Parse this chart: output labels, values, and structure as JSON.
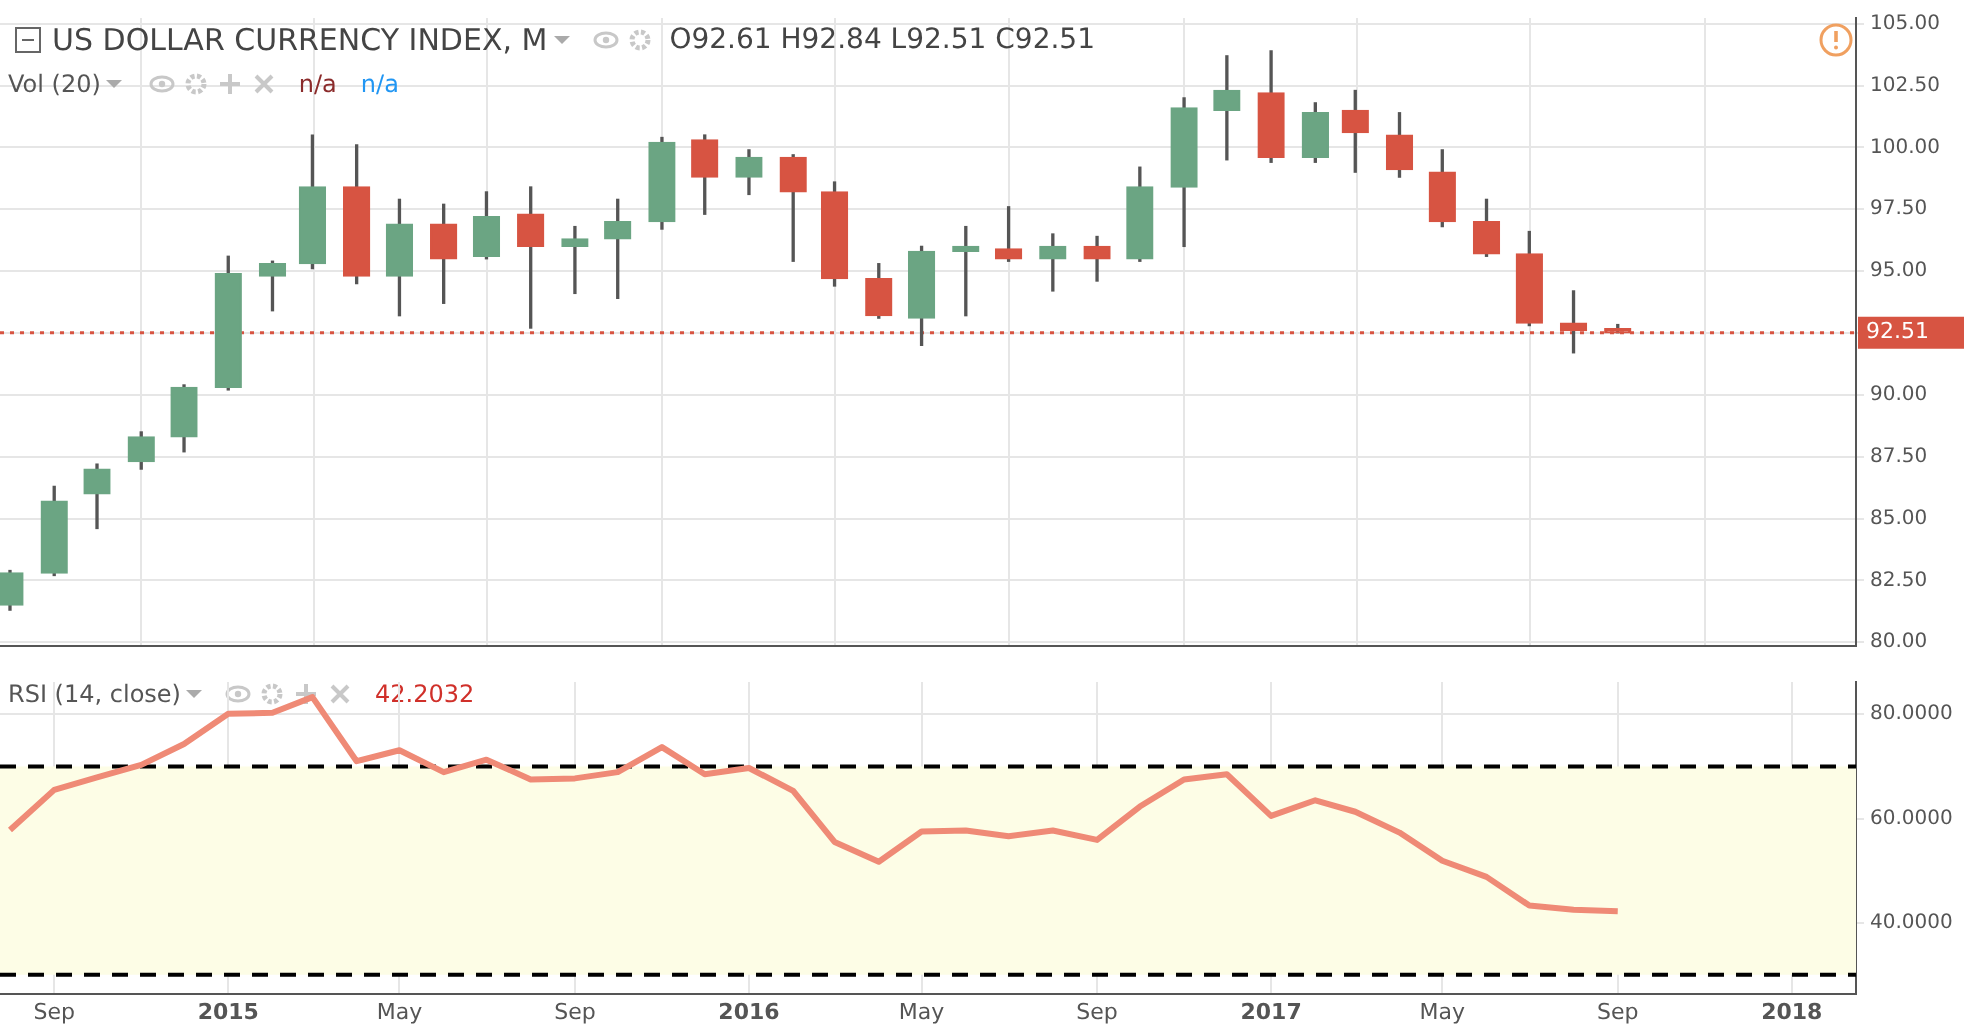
{
  "chart_data": [
    {
      "type": "candlestick",
      "title": "US DOLLAR CURRENCY INDEX, M",
      "annotations": [
        "O92.61 H92.84 L92.51 C92.51",
        "Vol (20)",
        "n/a",
        "n/a"
      ],
      "x": [
        "2014-08",
        "2014-09",
        "2014-10",
        "2014-11",
        "2014-12",
        "2015-01",
        "2015-02",
        "2015-03",
        "2015-04",
        "2015-05",
        "2015-06",
        "2015-07",
        "2015-08",
        "2015-09",
        "2015-10",
        "2015-11",
        "2015-12",
        "2016-01",
        "2016-02",
        "2016-03",
        "2016-04",
        "2016-05",
        "2016-06",
        "2016-07",
        "2016-08",
        "2016-09",
        "2016-10",
        "2016-11",
        "2016-12",
        "2017-01",
        "2017-02",
        "2017-03",
        "2017-04",
        "2017-05",
        "2017-06",
        "2017-07",
        "2017-08",
        "2017-09"
      ],
      "ohlc": [
        [
          81.5,
          82.9,
          81.3,
          82.8
        ],
        [
          82.8,
          86.3,
          82.7,
          85.7
        ],
        [
          86.0,
          87.2,
          84.6,
          87.0
        ],
        [
          87.3,
          88.5,
          87.0,
          88.3
        ],
        [
          88.3,
          90.4,
          87.7,
          90.3
        ],
        [
          90.3,
          95.6,
          90.2,
          94.9
        ],
        [
          94.8,
          95.4,
          93.4,
          95.3
        ],
        [
          95.3,
          100.5,
          95.1,
          98.4
        ],
        [
          98.4,
          100.1,
          94.5,
          94.8
        ],
        [
          94.8,
          97.9,
          93.2,
          96.9
        ],
        [
          96.9,
          97.7,
          93.7,
          95.5
        ],
        [
          95.6,
          98.2,
          95.5,
          97.2
        ],
        [
          97.3,
          98.4,
          92.7,
          96.0
        ],
        [
          96.0,
          96.8,
          94.1,
          96.3
        ],
        [
          96.3,
          97.9,
          93.9,
          97.0
        ],
        [
          97.0,
          100.4,
          96.7,
          100.2
        ],
        [
          100.3,
          100.5,
          97.3,
          98.8
        ],
        [
          98.8,
          99.9,
          98.1,
          99.6
        ],
        [
          99.6,
          99.7,
          95.4,
          98.2
        ],
        [
          98.2,
          98.6,
          94.4,
          94.7
        ],
        [
          94.7,
          95.3,
          93.1,
          93.2
        ],
        [
          93.1,
          96.0,
          92.0,
          95.8
        ],
        [
          95.8,
          96.8,
          93.2,
          96.0
        ],
        [
          95.9,
          97.6,
          95.4,
          95.5
        ],
        [
          95.5,
          96.5,
          94.2,
          96.0
        ],
        [
          96.0,
          96.4,
          94.6,
          95.5
        ],
        [
          95.5,
          99.2,
          95.4,
          98.4
        ],
        [
          98.4,
          102.0,
          96.0,
          101.6
        ],
        [
          101.5,
          103.7,
          99.5,
          102.3
        ],
        [
          102.2,
          103.9,
          99.4,
          99.6
        ],
        [
          99.6,
          101.8,
          99.4,
          101.4
        ],
        [
          101.5,
          102.3,
          99.0,
          100.6
        ],
        [
          100.5,
          101.4,
          98.8,
          99.1
        ],
        [
          99.0,
          99.9,
          96.8,
          97.0
        ],
        [
          97.0,
          97.9,
          95.6,
          95.7
        ],
        [
          95.7,
          96.6,
          92.8,
          92.9
        ],
        [
          92.9,
          94.2,
          91.7,
          92.6
        ],
        [
          92.61,
          92.84,
          92.51,
          92.51
        ]
      ],
      "colors": [
        "#6ba583",
        "#6ba583",
        "#6ba583",
        "#6ba583",
        "#6ba583",
        "#6ba583",
        "#6ba583",
        "#6ba583",
        "#d75442",
        "#6ba583",
        "#d75442",
        "#6ba583",
        "#d75442",
        "#6ba583",
        "#6ba583",
        "#6ba583",
        "#d75442",
        "#6ba583",
        "#d75442",
        "#d75442",
        "#d75442",
        "#6ba583",
        "#6ba583",
        "#d75442",
        "#6ba583",
        "#d75442",
        "#6ba583",
        "#6ba583",
        "#6ba583",
        "#d75442",
        "#6ba583",
        "#d75442",
        "#d75442",
        "#d75442",
        "#d75442",
        "#d75442",
        "#d75442",
        "#d75442"
      ],
      "xlim": [
        "2014-07-25",
        "2018-02-15"
      ],
      "xticks": [
        {
          "value": "2014-09",
          "label": null
        },
        {
          "value": "2015-01",
          "label": null
        },
        {
          "value": "2015-05",
          "label": null
        },
        {
          "value": "2015-09",
          "label": null
        },
        {
          "value": "2016-01",
          "label": null
        },
        {
          "value": "2016-05",
          "label": null
        },
        {
          "value": "2016-09",
          "label": null
        },
        {
          "value": "2017-01",
          "label": null
        },
        {
          "value": "2017-05",
          "label": null
        },
        {
          "value": "2017-09",
          "label": null
        },
        {
          "value": "2018-01",
          "label": null
        }
      ],
      "ylim": [
        79.85,
        105.23
      ],
      "yticks": [
        {
          "value": 80,
          "label": "80.00"
        },
        {
          "value": 82.5,
          "label": "82.50"
        },
        {
          "value": 85,
          "label": "85.00"
        },
        {
          "value": 87.5,
          "label": "87.50"
        },
        {
          "value": 90,
          "label": "90.00"
        },
        {
          "value": 92.5,
          "label": null
        },
        {
          "value": 95,
          "label": "95.00"
        },
        {
          "value": 97.5,
          "label": "97.50"
        },
        {
          "value": 100,
          "label": "100.00"
        },
        {
          "value": 102.5,
          "label": "102.50"
        },
        {
          "value": 105,
          "label": "105.00"
        }
      ],
      "ref_lines": [
        {
          "axis": "y",
          "value": 92.51,
          "label": "92.51",
          "color": "#d75442",
          "line_style": "dotted"
        }
      ],
      "grid": true,
      "legend": false,
      "tick_labels": "y"
    },
    {
      "type": "line",
      "title": "RSI (14, close)",
      "annotations": [
        "42.2032"
      ],
      "x": [
        "2014-08",
        "2014-09",
        "2014-10",
        "2014-11",
        "2014-12",
        "2015-01",
        "2015-02",
        "2015-03",
        "2015-04",
        "2015-05",
        "2015-06",
        "2015-07",
        "2015-08",
        "2015-09",
        "2015-10",
        "2015-11",
        "2015-12",
        "2016-01",
        "2016-02",
        "2016-03",
        "2016-04",
        "2016-05",
        "2016-06",
        "2016-07",
        "2016-08",
        "2016-09",
        "2016-10",
        "2016-11",
        "2016-12",
        "2017-01",
        "2017-02",
        "2017-03",
        "2017-04",
        "2017-05",
        "2017-06",
        "2017-07",
        "2017-08",
        "2017-09"
      ],
      "series": [
        {
          "color": "#ef8a76",
          "values": [
            57.8,
            65.5,
            67.9,
            70.3,
            74.3,
            80.1,
            80.3,
            83.3,
            71.0,
            73.1,
            68.9,
            71.3,
            67.5,
            67.7,
            68.9,
            73.7,
            68.5,
            69.7,
            65.3,
            55.5,
            51.7,
            57.5,
            57.7,
            56.6,
            57.7,
            55.9,
            62.3,
            67.5,
            68.5,
            60.5,
            63.5,
            61.3,
            57.3,
            51.9,
            48.8,
            43.3,
            42.5,
            42.2
          ]
        }
      ],
      "xlim": [
        "2014-07-25",
        "2018-02-15"
      ],
      "xticks": [
        {
          "value": "2014-09",
          "label": "Sep"
        },
        {
          "value": "2015-01",
          "label": "2015"
        },
        {
          "value": "2015-05",
          "label": "May"
        },
        {
          "value": "2015-09",
          "label": "Sep"
        },
        {
          "value": "2016-01",
          "label": "2016"
        },
        {
          "value": "2016-05",
          "label": "May"
        },
        {
          "value": "2016-09",
          "label": "Sep"
        },
        {
          "value": "2017-01",
          "label": "2017"
        },
        {
          "value": "2017-05",
          "label": "May"
        },
        {
          "value": "2017-09",
          "label": "Sep"
        },
        {
          "value": "2018-01",
          "label": "2018"
        }
      ],
      "ylim": [
        26.4,
        86.2
      ],
      "yticks": [
        {
          "value": 40,
          "label": "40.0000"
        },
        {
          "value": 60,
          "label": "60.0000"
        },
        {
          "value": 80,
          "label": "80.0000"
        }
      ],
      "ref_lines": [
        {
          "axis": "y",
          "value": 70,
          "color": "#000000",
          "line_style": "dashed"
        },
        {
          "axis": "y",
          "value": 30,
          "color": "#000000",
          "line_style": "dashed"
        }
      ],
      "bands": [
        {
          "axis": "y",
          "from": 30,
          "to": 70,
          "color": "#fdfde6"
        }
      ],
      "grid": true,
      "legend": false,
      "marker": "none",
      "line_style": "solid"
    }
  ]
}
